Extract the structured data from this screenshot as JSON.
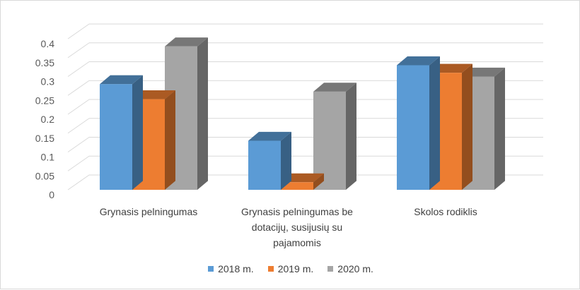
{
  "chart_data": {
    "type": "bar",
    "categories": [
      [
        "Grynasis pelningumas"
      ],
      [
        "Grynasis pelningumas be",
        "dotacijų, susijusių su",
        "pajamomis"
      ],
      [
        "Skolos rodiklis"
      ]
    ],
    "series": [
      {
        "name": "2018 m.",
        "values": [
          0.28,
          0.13,
          0.33
        ],
        "color": "#5B9BD5"
      },
      {
        "name": "2019 m.",
        "values": [
          0.24,
          0.02,
          0.31
        ],
        "color": "#ED7D31"
      },
      {
        "name": "2020 m.",
        "values": [
          0.38,
          0.26,
          0.3
        ],
        "color": "#A5A5A5"
      }
    ],
    "yticks": [
      "0",
      "0.05",
      "0.1",
      "0.15",
      "0.2",
      "0.25",
      "0.3",
      "0.35",
      "0.4"
    ],
    "ylim": [
      0,
      0.4
    ],
    "grid": true,
    "legend_position": "bottom",
    "style": "3d-clustered-column"
  }
}
